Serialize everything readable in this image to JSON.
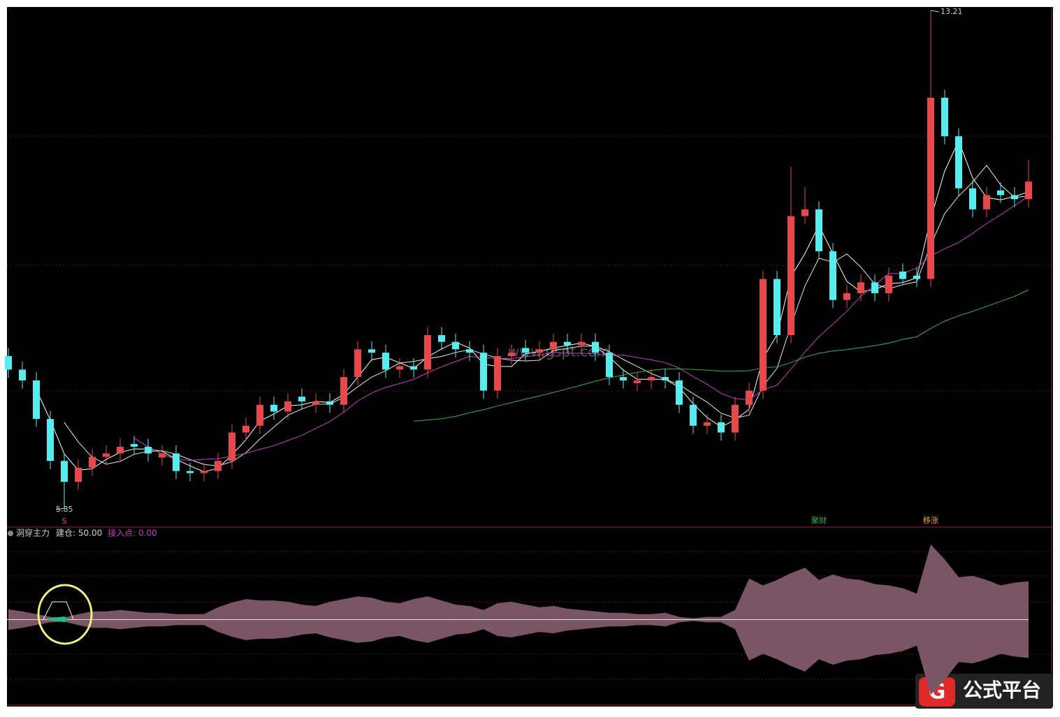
{
  "chart_data": {
    "type": "candlestick",
    "open": [
      8.1,
      7.9,
      7.74,
      7.17,
      6.55,
      6.24,
      6.45,
      6.61,
      6.66,
      6.8,
      6.76,
      6.6,
      6.66,
      6.4,
      6.37,
      6.4,
      6.55,
      6.97,
      7.07,
      7.38,
      7.28,
      7.5,
      7.38,
      7.43,
      7.38,
      7.79,
      8.2,
      8.15,
      7.9,
      7.95,
      7.9,
      8.41,
      8.31,
      8.2,
      8.15,
      7.59,
      8.1,
      8.22,
      8.15,
      8.2,
      8.31,
      8.26,
      8.31,
      8.15,
      7.79,
      7.7,
      7.74,
      7.79,
      7.74,
      7.38,
      7.07,
      7.12,
      6.97,
      7.38,
      7.59,
      9.24,
      8.41,
      10.17,
      10.27,
      9.65,
      8.93,
      9.03,
      9.19,
      9.03,
      9.35,
      9.29,
      9.24,
      11.92,
      11.35,
      10.58,
      10.27,
      10.55,
      10.48,
      10.42
    ],
    "high": [
      8.22,
      8.02,
      7.86,
      7.29,
      6.67,
      6.57,
      6.73,
      6.78,
      6.88,
      6.92,
      6.88,
      6.78,
      6.78,
      6.52,
      6.52,
      6.67,
      7.09,
      7.19,
      7.5,
      7.5,
      7.55,
      7.62,
      7.55,
      7.55,
      7.91,
      8.32,
      8.32,
      8.27,
      8.07,
      8.07,
      8.53,
      8.53,
      8.43,
      8.32,
      8.27,
      8.22,
      8.27,
      8.34,
      8.32,
      8.43,
      8.43,
      8.43,
      8.43,
      8.27,
      7.91,
      7.86,
      7.91,
      7.91,
      7.86,
      7.5,
      7.24,
      7.24,
      7.5,
      7.71,
      9.36,
      9.36,
      10.9,
      10.6,
      10.39,
      9.77,
      9.15,
      9.31,
      9.31,
      9.41,
      9.47,
      9.41,
      13.21,
      12.04,
      11.47,
      10.7,
      10.6,
      10.67,
      10.6,
      11.0
    ],
    "low": [
      7.78,
      7.62,
      7.05,
      6.43,
      5.85,
      6.12,
      6.33,
      6.49,
      6.54,
      6.64,
      6.54,
      6.48,
      6.28,
      6.25,
      6.25,
      6.28,
      6.43,
      6.85,
      6.95,
      7.16,
      7.16,
      7.31,
      7.26,
      7.26,
      7.26,
      7.67,
      8.03,
      7.78,
      7.78,
      7.78,
      7.78,
      8.19,
      8.08,
      8.03,
      7.47,
      7.47,
      7.98,
      8.03,
      8.03,
      8.08,
      8.14,
      8.14,
      8.03,
      7.67,
      7.62,
      7.58,
      7.62,
      7.62,
      7.26,
      6.95,
      6.95,
      6.85,
      6.85,
      7.26,
      7.47,
      8.29,
      8.29,
      10.05,
      9.53,
      8.81,
      8.81,
      8.91,
      8.91,
      8.91,
      9.17,
      9.12,
      9.12,
      11.23,
      10.46,
      10.15,
      10.15,
      10.36,
      10.3,
      10.3
    ],
    "close": [
      7.9,
      7.74,
      7.17,
      6.55,
      6.24,
      6.45,
      6.61,
      6.66,
      6.76,
      6.76,
      6.66,
      6.66,
      6.4,
      6.37,
      6.4,
      6.55,
      6.97,
      7.07,
      7.38,
      7.28,
      7.43,
      7.43,
      7.43,
      7.38,
      7.79,
      8.2,
      8.15,
      7.9,
      7.95,
      7.9,
      8.41,
      8.31,
      8.2,
      8.15,
      7.59,
      8.1,
      8.15,
      8.15,
      8.2,
      8.31,
      8.26,
      8.31,
      8.15,
      7.79,
      7.74,
      7.74,
      7.79,
      7.74,
      7.38,
      7.07,
      7.12,
      6.97,
      7.38,
      7.59,
      9.24,
      8.41,
      10.17,
      10.27,
      9.65,
      8.93,
      9.03,
      9.19,
      9.03,
      9.29,
      9.24,
      9.24,
      11.92,
      11.35,
      10.58,
      10.27,
      10.48,
      10.48,
      10.42,
      10.68
    ],
    "up_color": "#e8474b",
    "down_color": "#54eef0",
    "ylim": [
      5.85,
      13.21
    ],
    "moving_averages": [
      {
        "period": 3,
        "color": "#ffffff"
      },
      {
        "period": 5,
        "color": "#e8e8e8"
      },
      {
        "period": 10,
        "color": "#c040c0"
      },
      {
        "period": 30,
        "color": "#3cb043"
      }
    ],
    "max_label": "13.21",
    "min_label": "5.85",
    "sell_marker": "S",
    "signals": [
      {
        "index": 58,
        "label": "聚财",
        "color": "#3cb043"
      },
      {
        "index": 66,
        "label": "移涨",
        "color": "#e8a040"
      }
    ],
    "indicator": {
      "name": "洞穿主力",
      "legend": [
        {
          "label": "建仓: 50.00",
          "color": "#d0d0d0"
        },
        {
          "label": "接入点: 0.00",
          "color": "#c040c0"
        }
      ],
      "values": [
        15,
        12,
        8,
        4,
        3,
        8,
        12,
        12,
        14,
        12,
        10,
        10,
        8,
        8,
        8,
        18,
        25,
        30,
        28,
        28,
        26,
        22,
        20,
        26,
        30,
        34,
        32,
        26,
        24,
        30,
        34,
        28,
        22,
        20,
        14,
        24,
        26,
        22,
        18,
        20,
        16,
        14,
        12,
        10,
        10,
        8,
        8,
        10,
        4,
        2,
        4,
        4,
        14,
        60,
        50,
        58,
        68,
        76,
        58,
        66,
        60,
        58,
        52,
        50,
        46,
        38,
        110,
        88,
        62,
        64,
        58,
        50,
        54,
        56
      ],
      "ylim": [
        -120,
        120
      ],
      "color": "#7a5566"
    }
  },
  "watermark": {
    "site": "www.gspt.com",
    "logo": "公式平台"
  }
}
